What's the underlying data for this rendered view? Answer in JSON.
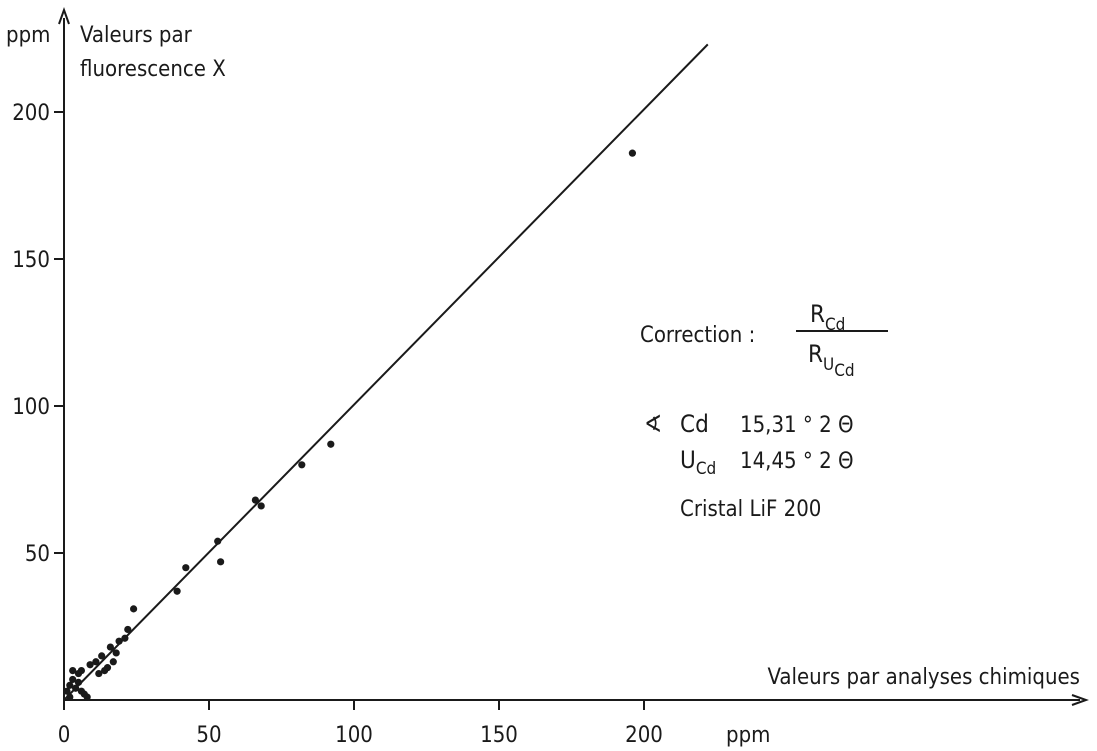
{
  "chart_data": {
    "type": "scatter",
    "title": "",
    "xlabel": "Valeurs par analyses chimiques",
    "xunit": "ppm",
    "ylabel_line1": "Valeurs par",
    "ylabel_line2": "fluorescence X",
    "yunit": "ppm",
    "xlim": [
      0,
      350
    ],
    "ylim": [
      0,
      225
    ],
    "xticks": [
      0,
      50,
      100,
      150,
      200
    ],
    "yticks": [
      50,
      100,
      150,
      200
    ],
    "x_tick_labels": [
      "0",
      "50",
      "100",
      "150",
      "200"
    ],
    "y_tick_labels": [
      "50",
      "100",
      "150",
      "200"
    ],
    "grid": false,
    "fit_line": {
      "x": [
        0,
        222
      ],
      "y": [
        0,
        223
      ]
    },
    "points": [
      {
        "x": 1,
        "y": 3
      },
      {
        "x": 2,
        "y": 5
      },
      {
        "x": 2,
        "y": 1
      },
      {
        "x": 3,
        "y": 7
      },
      {
        "x": 3,
        "y": 10
      },
      {
        "x": 4,
        "y": 4
      },
      {
        "x": 5,
        "y": 9
      },
      {
        "x": 5,
        "y": 6
      },
      {
        "x": 6,
        "y": 3
      },
      {
        "x": 6,
        "y": 10
      },
      {
        "x": 7,
        "y": 2
      },
      {
        "x": 8,
        "y": 1
      },
      {
        "x": 9,
        "y": 12
      },
      {
        "x": 11,
        "y": 13
      },
      {
        "x": 12,
        "y": 9
      },
      {
        "x": 13,
        "y": 15
      },
      {
        "x": 14,
        "y": 10
      },
      {
        "x": 15,
        "y": 11
      },
      {
        "x": 16,
        "y": 18
      },
      {
        "x": 17,
        "y": 13
      },
      {
        "x": 18,
        "y": 16
      },
      {
        "x": 19,
        "y": 20
      },
      {
        "x": 21,
        "y": 21
      },
      {
        "x": 22,
        "y": 24
      },
      {
        "x": 24,
        "y": 31
      },
      {
        "x": 39,
        "y": 37
      },
      {
        "x": 42,
        "y": 45
      },
      {
        "x": 53,
        "y": 54
      },
      {
        "x": 54,
        "y": 47
      },
      {
        "x": 66,
        "y": 68
      },
      {
        "x": 68,
        "y": 66
      },
      {
        "x": 82,
        "y": 80
      },
      {
        "x": 92,
        "y": 87
      },
      {
        "x": 196,
        "y": 186
      }
    ]
  },
  "annotation": {
    "correction_label": "Correction :",
    "fraction_numerator": "R",
    "fraction_numerator_sub": "Cd",
    "fraction_denominator": "R",
    "fraction_denominator_sub": "U",
    "fraction_denominator_subsub": "Cd",
    "angle_symbol": "∢",
    "angle_line_element": "Cd",
    "angle_line_value": "15,31 ° 2 Θ",
    "u_line_element": "U",
    "u_line_sub": "Cd",
    "u_line_value": "14,45 ° 2 Θ",
    "crystal_line": "Cristal  LiF 200"
  }
}
